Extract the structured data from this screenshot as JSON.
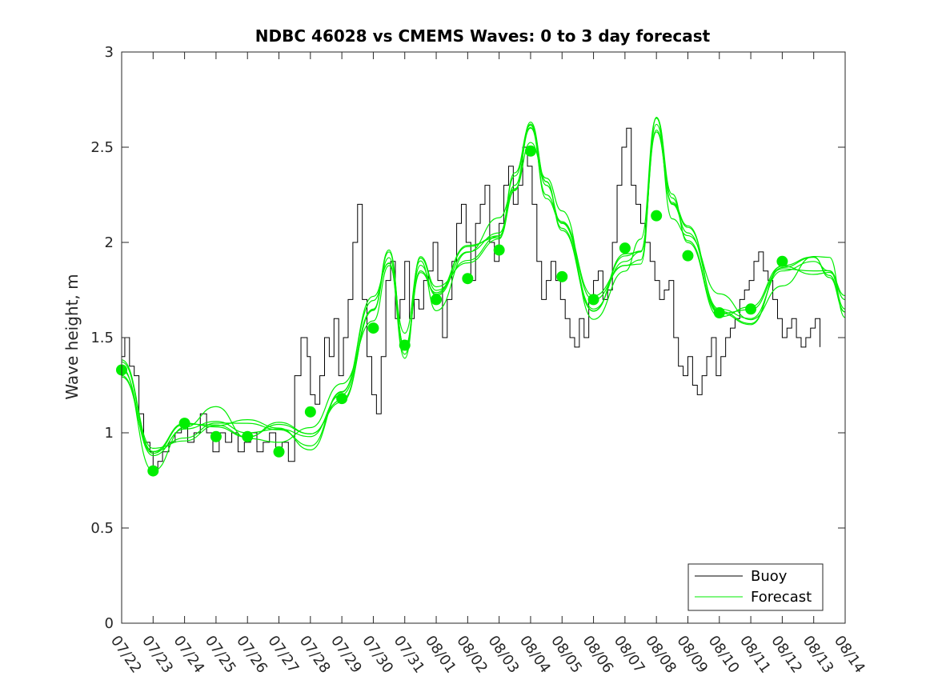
{
  "chart_data": {
    "type": "line",
    "title": "NDBC 46028 vs CMEMS Waves: 0 to 3 day forecast",
    "xlabel": "",
    "ylabel": "Wave height, m",
    "ylim": [
      0,
      3
    ],
    "yticks": [
      "0",
      "0.5",
      "1",
      "1.5",
      "2",
      "2.5",
      "3"
    ],
    "xlim": [
      "07/22",
      "08/14"
    ],
    "xticks": [
      "07/22",
      "07/23",
      "07/24",
      "07/25",
      "07/26",
      "07/27",
      "07/28",
      "07/29",
      "07/30",
      "07/31",
      "08/01",
      "08/02",
      "08/03",
      "08/04",
      "08/05",
      "08/06",
      "08/07",
      "08/08",
      "08/09",
      "08/10",
      "08/11",
      "08/12",
      "08/13",
      "08/14"
    ],
    "grid": false,
    "legend": {
      "position": "bottom-right",
      "entries": [
        "Buoy",
        "Forecast"
      ]
    },
    "colors": {
      "Buoy": "#000000",
      "Forecast": "#00ee00"
    },
    "series": [
      {
        "name": "Buoy",
        "x": [
          0,
          0.1,
          0.25,
          0.4,
          0.55,
          0.7,
          0.9,
          1.0,
          1.15,
          1.3,
          1.5,
          1.7,
          1.9,
          2.1,
          2.3,
          2.5,
          2.7,
          2.9,
          3.1,
          3.3,
          3.5,
          3.7,
          3.9,
          4.1,
          4.3,
          4.5,
          4.7,
          4.9,
          5.1,
          5.3,
          5.5,
          5.7,
          5.9,
          6.0,
          6.15,
          6.3,
          6.45,
          6.6,
          6.75,
          6.9,
          7.05,
          7.2,
          7.35,
          7.5,
          7.65,
          7.8,
          7.95,
          8.1,
          8.25,
          8.4,
          8.55,
          8.7,
          8.85,
          9.0,
          9.15,
          9.3,
          9.45,
          9.6,
          9.75,
          9.9,
          10.05,
          10.2,
          10.35,
          10.5,
          10.65,
          10.8,
          10.95,
          11.1,
          11.25,
          11.4,
          11.55,
          11.7,
          11.85,
          12.0,
          12.15,
          12.3,
          12.45,
          12.6,
          12.75,
          12.9,
          13.05,
          13.2,
          13.35,
          13.5,
          13.65,
          13.8,
          13.95,
          14.1,
          14.25,
          14.4,
          14.55,
          14.7,
          14.85,
          15.0,
          15.15,
          15.3,
          15.45,
          15.6,
          15.75,
          15.9,
          16.05,
          16.2,
          16.35,
          16.5,
          16.65,
          16.8,
          16.95,
          17.1,
          17.25,
          17.4,
          17.55,
          17.7,
          17.85,
          18.0,
          18.15,
          18.3,
          18.45,
          18.6,
          18.75,
          18.9,
          19.05,
          19.2,
          19.35,
          19.5,
          19.65,
          19.8,
          19.95,
          20.1,
          20.25,
          20.4,
          20.55,
          20.7,
          20.85,
          21.0,
          21.15,
          21.3,
          21.45,
          21.6,
          21.75,
          21.9,
          22.05,
          22.2
        ],
        "values": [
          1.4,
          1.5,
          1.35,
          1.3,
          1.1,
          0.95,
          0.9,
          0.8,
          0.85,
          0.9,
          0.95,
          1.0,
          1.05,
          0.95,
          1.0,
          1.1,
          1.0,
          0.9,
          1.0,
          0.95,
          1.0,
          0.9,
          0.95,
          1.0,
          0.9,
          0.95,
          1.0,
          0.9,
          0.95,
          0.85,
          1.3,
          1.5,
          1.4,
          1.2,
          1.15,
          1.3,
          1.5,
          1.4,
          1.6,
          1.3,
          1.5,
          1.7,
          2.0,
          2.2,
          1.7,
          1.4,
          1.2,
          1.1,
          1.4,
          1.8,
          1.9,
          1.6,
          1.7,
          1.9,
          1.6,
          1.7,
          1.65,
          1.8,
          1.85,
          2.0,
          1.8,
          1.5,
          1.7,
          1.9,
          2.1,
          2.2,
          2.0,
          1.8,
          2.1,
          2.2,
          2.3,
          2.0,
          1.9,
          2.1,
          2.3,
          2.4,
          2.2,
          2.3,
          2.5,
          2.4,
          2.2,
          1.9,
          1.7,
          1.8,
          1.9,
          1.8,
          1.7,
          1.6,
          1.5,
          1.45,
          1.6,
          1.5,
          1.7,
          1.8,
          1.85,
          1.7,
          1.75,
          2.0,
          2.3,
          2.5,
          2.6,
          2.3,
          2.2,
          2.1,
          2.0,
          1.9,
          1.8,
          1.7,
          1.75,
          1.8,
          1.5,
          1.35,
          1.3,
          1.4,
          1.25,
          1.2,
          1.3,
          1.4,
          1.5,
          1.3,
          1.4,
          1.5,
          1.55,
          1.6,
          1.7,
          1.75,
          1.8,
          1.9,
          1.95,
          1.85,
          1.8,
          1.7,
          1.6,
          1.5,
          1.55,
          1.6,
          1.5,
          1.45,
          1.5,
          1.55,
          1.6,
          1.45
        ]
      },
      {
        "name": "Forecast",
        "x": [
          0,
          1,
          2,
          3,
          4,
          5,
          6,
          7,
          8,
          8.5,
          9,
          9.5,
          10,
          11,
          12,
          12.5,
          13,
          13.5,
          14,
          15,
          16,
          16.5,
          17,
          17.5,
          18,
          19,
          20,
          21,
          22,
          22.5,
          23
        ],
        "values": [
          1.33,
          0.88,
          1.02,
          1.06,
          1.0,
          1.02,
          0.98,
          1.2,
          1.65,
          1.92,
          1.45,
          1.88,
          1.72,
          1.95,
          2.05,
          2.3,
          2.6,
          2.3,
          2.1,
          1.65,
          1.9,
          1.95,
          2.62,
          2.2,
          2.05,
          1.65,
          1.6,
          1.85,
          1.9,
          1.85,
          1.65
        ]
      }
    ],
    "markers": {
      "name": "Forecast",
      "x": [
        0,
        1,
        2,
        3,
        4,
        5,
        6,
        7,
        8,
        9,
        10,
        11,
        12,
        13,
        14,
        15,
        16,
        17,
        18,
        19,
        20,
        21
      ],
      "values": [
        1.33,
        0.8,
        1.05,
        0.98,
        0.98,
        0.9,
        1.11,
        1.18,
        1.55,
        1.46,
        1.7,
        1.81,
        1.96,
        2.48,
        1.82,
        1.7,
        1.97,
        2.14,
        1.93,
        1.63,
        1.65,
        1.9
      ]
    }
  }
}
